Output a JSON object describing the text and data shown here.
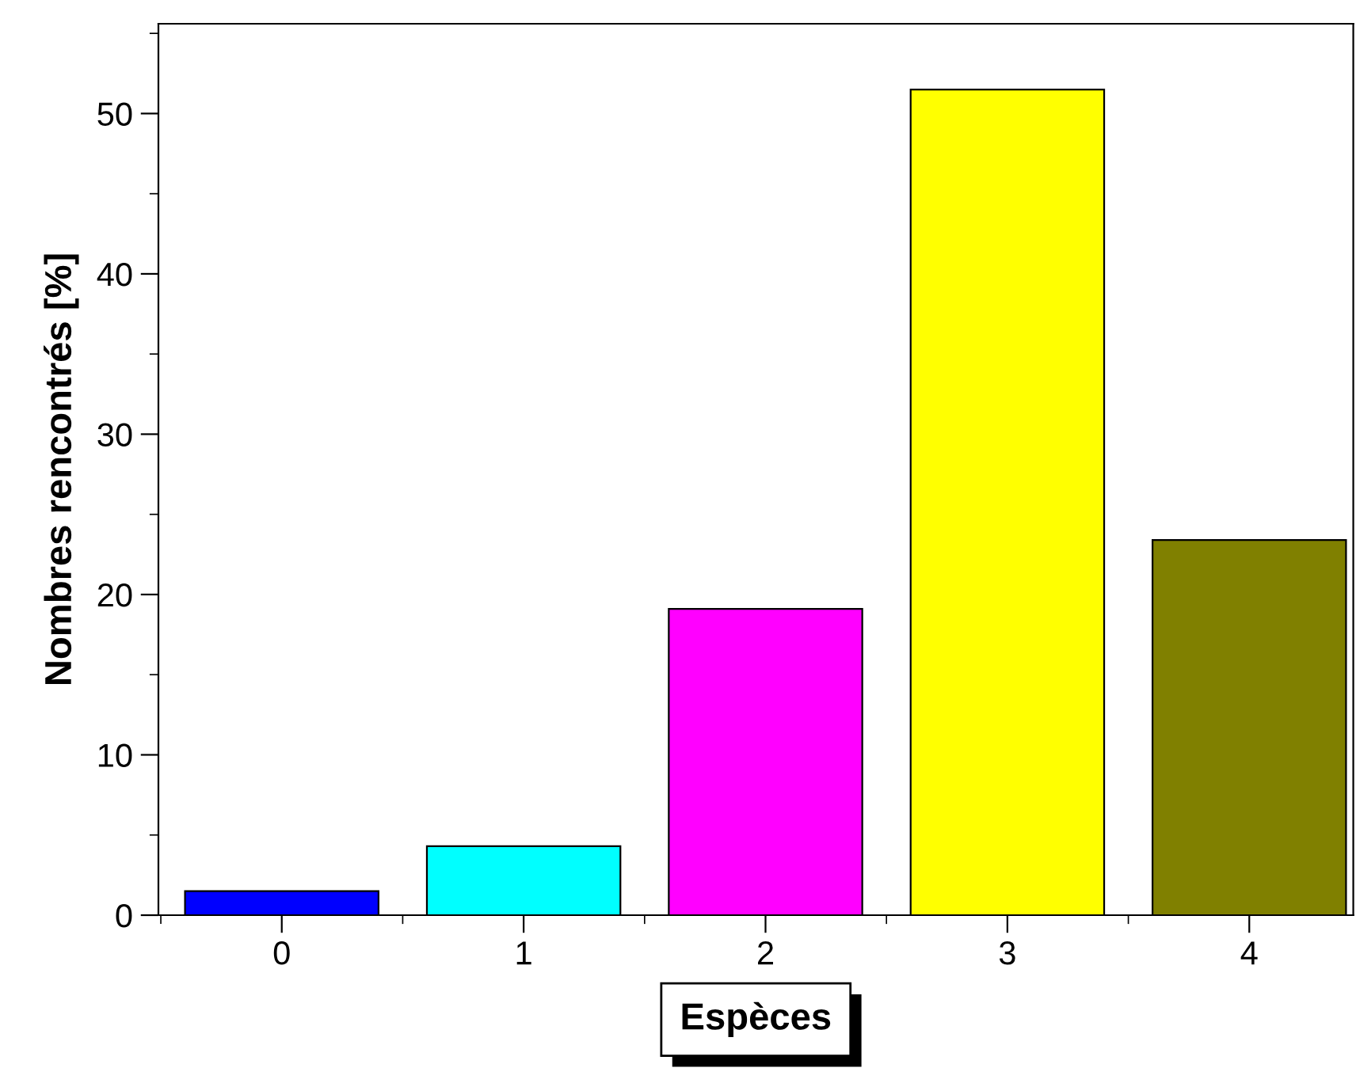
{
  "chart_data": {
    "type": "bar",
    "xlabel": "Espèces",
    "ylabel": "Nombres rencontrés [%]",
    "x": [
      0,
      1,
      2,
      3,
      4
    ],
    "series": [
      {
        "colors": [
          "#0000ff",
          "#00ffff",
          "#ff00ff",
          "#ffff00",
          "#808000"
        ],
        "values": [
          1.5,
          4.3,
          19.1,
          51.5,
          23.4
        ]
      }
    ],
    "xlim": [
      -0.51,
      4.43
    ],
    "xticks": [
      0,
      1,
      2,
      3,
      4
    ],
    "ylim": [
      0,
      55.6
    ],
    "yticks": [
      0,
      10,
      20,
      30,
      40,
      50
    ],
    "grid": false,
    "legend": false
  }
}
